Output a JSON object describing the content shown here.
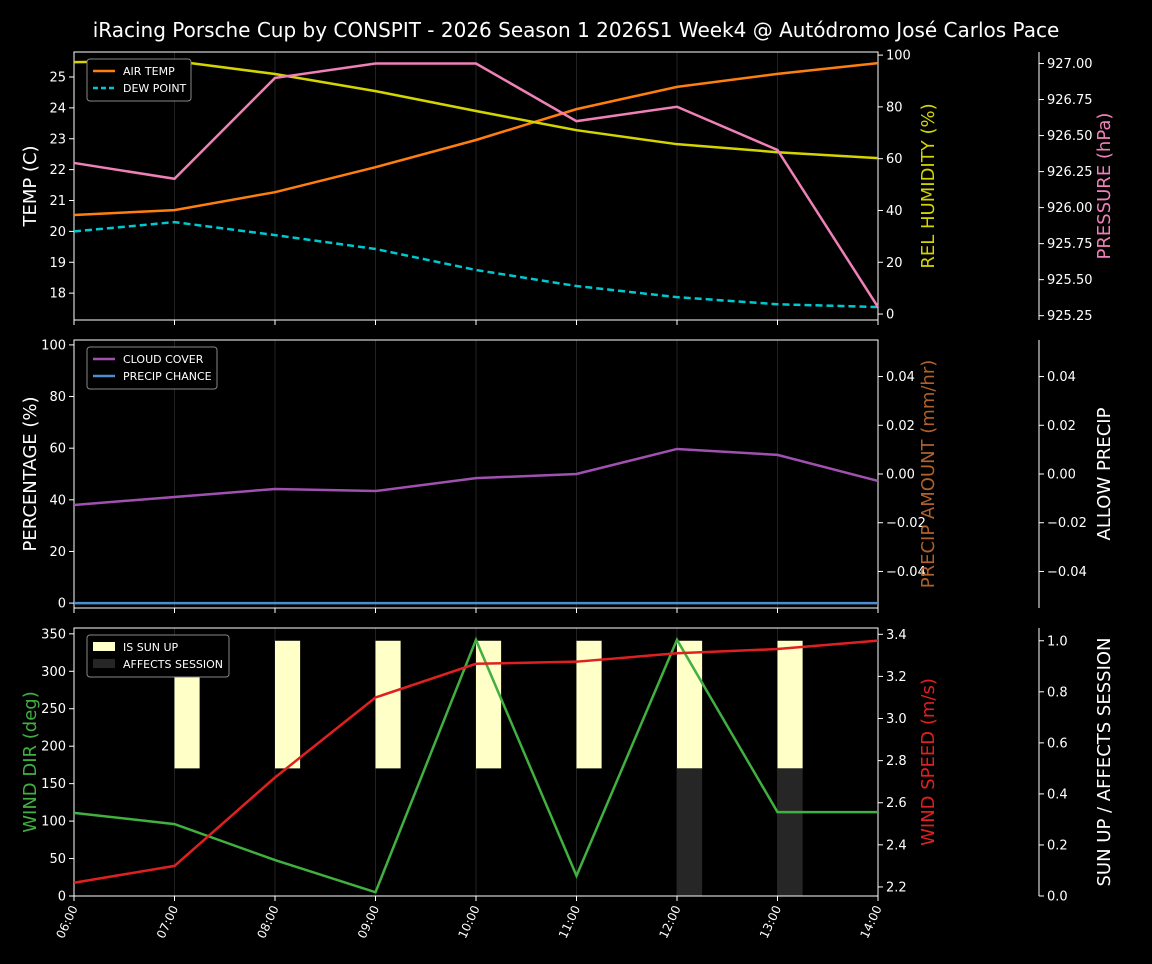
{
  "title": "iRacing Porsche Cup by CONSPIT - 2026 Season 1 2026S1 Week4 @ Autódromo José Carlos Pace",
  "chart_data": [
    {
      "type": "line",
      "x": [
        "06:00",
        "07:00",
        "08:00",
        "09:00",
        "10:00",
        "11:00",
        "12:00",
        "13:00",
        "14:00"
      ],
      "axes": {
        "left": {
          "label": "TEMP (C)",
          "color": "#ffffff",
          "ylim": [
            17.13,
            25.81
          ],
          "ticks": [
            18,
            19,
            20,
            21,
            22,
            23,
            24,
            25
          ]
        },
        "right": {
          "label": "REL HUMIDITY (%)",
          "color": "#d4d400",
          "ylim": [
            -2.3,
            101.2
          ],
          "ticks": [
            0,
            20,
            40,
            60,
            80,
            100
          ]
        },
        "far_right": {
          "label": "PRESSURE (hPa)",
          "color": "#f080b8",
          "ylim": [
            925.22,
            927.08
          ],
          "ticks": [
            "925.25",
            "925.50",
            "925.75",
            "926.00",
            "926.25",
            "926.50",
            "926.75",
            "927.00"
          ]
        }
      },
      "series": [
        {
          "name": "AIR TEMP",
          "axis": "left",
          "color": "#ff7f0e",
          "style": "solid",
          "values": [
            20.53,
            20.69,
            21.27,
            22.08,
            22.96,
            23.96,
            24.68,
            25.1,
            25.45
          ]
        },
        {
          "name": "DEW POINT",
          "axis": "left",
          "color": "#00c8d0",
          "style": "dashed",
          "values": [
            20.0,
            20.3,
            19.88,
            19.43,
            18.75,
            18.23,
            17.87,
            17.64,
            17.55
          ]
        },
        {
          "axis": "right",
          "color": "#d4d400",
          "style": "solid",
          "values": [
            97.3,
            97.7,
            92.7,
            86.1,
            78.4,
            71.0,
            65.6,
            62.5,
            60.2
          ]
        },
        {
          "axis": "far_right",
          "color": "#f080b8",
          "style": "solid",
          "values": [
            926.31,
            926.2,
            926.9,
            927.0,
            927.0,
            926.6,
            926.7,
            926.4,
            925.31
          ]
        }
      ],
      "legend": "top-left",
      "grid": "vertical"
    },
    {
      "type": "line",
      "x": [
        "06:00",
        "07:00",
        "08:00",
        "09:00",
        "10:00",
        "11:00",
        "12:00",
        "13:00",
        "14:00"
      ],
      "axes": {
        "left": {
          "label": "PERCENTAGE (%)",
          "color": "#ffffff",
          "ylim": [
            -1.9,
            101.9
          ],
          "ticks": [
            0,
            20,
            40,
            60,
            80,
            100
          ]
        },
        "right": {
          "label": "PRECIP AMOUNT (mm/hr)",
          "color": "#b0602a",
          "ylim": [
            -0.055,
            0.055
          ],
          "ticks": [
            "−0.04",
            "−0.02",
            "0.00",
            "0.02",
            "0.04"
          ]
        },
        "far_right": {
          "label": "ALLOW PRECIP",
          "color": "#ffffff",
          "ylim": [
            -0.055,
            0.055
          ],
          "ticks": [
            "−0.04",
            "−0.02",
            "0.00",
            "0.02",
            "0.04"
          ]
        }
      },
      "series": [
        {
          "name": "CLOUD COVER",
          "axis": "left",
          "color": "#a050b0",
          "style": "solid",
          "values": [
            38,
            41.1,
            44.2,
            43.4,
            48.4,
            50,
            59.7,
            57.4,
            47.3
          ]
        },
        {
          "name": "PRECIP CHANCE",
          "axis": "left",
          "color": "#4a90d0",
          "style": "solid",
          "values": [
            0,
            0,
            0,
            0,
            0,
            0,
            0,
            0,
            0
          ]
        }
      ],
      "legend": "top-left",
      "grid": "vertical"
    },
    {
      "type": "line",
      "x": [
        "06:00",
        "07:00",
        "08:00",
        "09:00",
        "10:00",
        "11:00",
        "12:00",
        "13:00",
        "14:00"
      ],
      "axes": {
        "left": {
          "label": "WIND DIR (deg)",
          "color": "#40b040",
          "ylim": [
            0,
            357.8
          ],
          "ticks": [
            0,
            50,
            100,
            150,
            200,
            250,
            300,
            350
          ]
        },
        "right": {
          "label": "WIND SPEED (m/s)",
          "color": "#e02020",
          "ylim": [
            2.157,
            3.43
          ],
          "ticks": [
            "2.2",
            "2.4",
            "2.6",
            "2.8",
            "3.0",
            "3.2",
            "3.4"
          ]
        },
        "far_right": {
          "label": "SUN UP / AFFECTS SESSION",
          "color": "#ffffff",
          "ylim": [
            0,
            1.05
          ],
          "ticks": [
            "0.0",
            "0.2",
            "0.4",
            "0.6",
            "0.8",
            "1.0"
          ]
        }
      },
      "series": [
        {
          "axis": "left",
          "color": "#40b040",
          "style": "solid",
          "values": [
            111,
            96,
            48,
            5,
            342,
            27,
            342,
            112,
            112
          ]
        },
        {
          "axis": "right",
          "color": "#e02020",
          "style": "solid",
          "values": [
            2.22,
            2.3,
            2.72,
            3.1,
            3.26,
            3.27,
            3.31,
            3.33,
            3.37
          ]
        }
      ],
      "bars": [
        {
          "name": "IS SUN UP",
          "color": "#ffffc8",
          "values": [
            0,
            1,
            1,
            1,
            1,
            1,
            1,
            1,
            0
          ]
        },
        {
          "name": "AFFECTS SESSION",
          "color": "#262626",
          "values": [
            0,
            0,
            0,
            0,
            0,
            0,
            1,
            1,
            0
          ]
        }
      ],
      "legend": "top-left",
      "grid": "vertical"
    }
  ]
}
